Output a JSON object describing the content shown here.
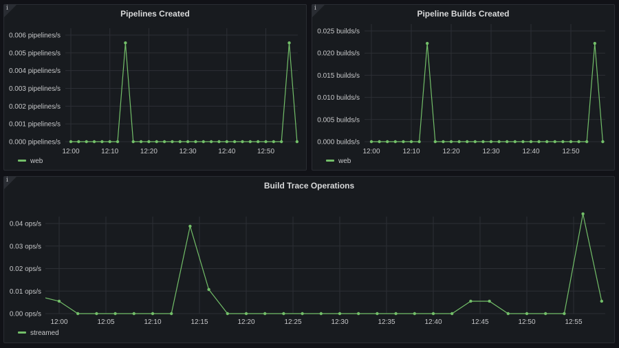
{
  "colors": {
    "series": "#73bf69",
    "grid": "#2c2f35",
    "background": "#111217",
    "panel": "#181b1f"
  },
  "panels": [
    {
      "title": "Pipelines Created",
      "info_icon": "info-icon",
      "info_label": "i"
    },
    {
      "title": "Pipeline Builds Created",
      "info_icon": "info-icon",
      "info_label": "i"
    },
    {
      "title": "Build Trace Operations",
      "info_icon": "info-icon",
      "info_label": "i"
    }
  ],
  "chart_data": [
    {
      "type": "line",
      "title": "Pipelines Created",
      "unit": "pipelines/s",
      "y_ticks": [
        "0.000 pipelines/s",
        "0.001 pipelines/s",
        "0.002 pipelines/s",
        "0.003 pipelines/s",
        "0.004 pipelines/s",
        "0.005 pipelines/s",
        "0.006 pipelines/s"
      ],
      "y_tick_values": [
        0,
        0.001,
        0.002,
        0.003,
        0.004,
        0.005,
        0.006
      ],
      "ylim": [
        0,
        0.006
      ],
      "x_ticks": [
        "12:00",
        "12:10",
        "12:20",
        "12:30",
        "12:40",
        "12:50"
      ],
      "grid": true,
      "legend_position": "bottom-left",
      "x": [
        "12:00",
        "12:02",
        "12:04",
        "12:06",
        "12:08",
        "12:10",
        "12:12",
        "12:14",
        "12:16",
        "12:18",
        "12:20",
        "12:22",
        "12:24",
        "12:26",
        "12:28",
        "12:30",
        "12:32",
        "12:34",
        "12:36",
        "12:38",
        "12:40",
        "12:42",
        "12:44",
        "12:46",
        "12:48",
        "12:50",
        "12:52",
        "12:54",
        "12:56",
        "12:58"
      ],
      "series": [
        {
          "name": "web",
          "values": [
            0,
            0,
            0,
            0,
            0,
            0,
            0,
            0.00556,
            0,
            0,
            0,
            0,
            0,
            0,
            0,
            0,
            0,
            0,
            0,
            0,
            0,
            0,
            0,
            0,
            0,
            0,
            0,
            0,
            0.00556,
            0
          ]
        }
      ]
    },
    {
      "type": "line",
      "title": "Pipeline Builds Created",
      "unit": "builds/s",
      "y_ticks": [
        "0.000 builds/s",
        "0.005 builds/s",
        "0.010 builds/s",
        "0.015 builds/s",
        "0.020 builds/s",
        "0.025 builds/s"
      ],
      "y_tick_values": [
        0,
        0.005,
        0.01,
        0.015,
        0.02,
        0.025
      ],
      "ylim": [
        0,
        0.025
      ],
      "x_ticks": [
        "12:00",
        "12:10",
        "12:20",
        "12:30",
        "12:40",
        "12:50"
      ],
      "grid": true,
      "legend_position": "bottom-left",
      "x": [
        "12:00",
        "12:02",
        "12:04",
        "12:06",
        "12:08",
        "12:10",
        "12:12",
        "12:14",
        "12:16",
        "12:18",
        "12:20",
        "12:22",
        "12:24",
        "12:26",
        "12:28",
        "12:30",
        "12:32",
        "12:34",
        "12:36",
        "12:38",
        "12:40",
        "12:42",
        "12:44",
        "12:46",
        "12:48",
        "12:50",
        "12:52",
        "12:54",
        "12:56",
        "12:58"
      ],
      "series": [
        {
          "name": "web",
          "values": [
            0,
            0,
            0,
            0,
            0,
            0,
            0,
            0.0222,
            0,
            0,
            0,
            0,
            0,
            0,
            0,
            0,
            0,
            0,
            0,
            0,
            0,
            0,
            0,
            0,
            0,
            0,
            0,
            0,
            0.0222,
            0
          ]
        }
      ]
    },
    {
      "type": "line",
      "title": "Build Trace Operations",
      "unit": "ops/s",
      "y_ticks": [
        "0.00 ops/s",
        "0.01 ops/s",
        "0.02 ops/s",
        "0.03 ops/s",
        "0.04 ops/s"
      ],
      "y_tick_values": [
        0,
        0.01,
        0.02,
        0.03,
        0.04
      ],
      "ylim": [
        0,
        0.045
      ],
      "x_ticks": [
        "12:00",
        "12:05",
        "12:10",
        "12:15",
        "12:20",
        "12:25",
        "12:30",
        "12:35",
        "12:40",
        "12:45",
        "12:50",
        "12:55"
      ],
      "grid": true,
      "legend_position": "bottom-left",
      "x": [
        "11:58",
        "12:00",
        "12:02",
        "12:04",
        "12:06",
        "12:08",
        "12:10",
        "12:12",
        "12:14",
        "12:16",
        "12:18",
        "12:20",
        "12:22",
        "12:24",
        "12:26",
        "12:28",
        "12:30",
        "12:32",
        "12:34",
        "12:36",
        "12:38",
        "12:40",
        "12:42",
        "12:44",
        "12:46",
        "12:48",
        "12:50",
        "12:52",
        "12:54",
        "12:56",
        "12:58"
      ],
      "series": [
        {
          "name": "streamed",
          "values": [
            0.0075,
            0.0055,
            0,
            0,
            0,
            0,
            0,
            0,
            0.0388,
            0.0107,
            0,
            0,
            0,
            0,
            0,
            0,
            0,
            0,
            0,
            0,
            0,
            0,
            0,
            0.0055,
            0.0055,
            0,
            0,
            0,
            0,
            0.0443,
            0.0055
          ]
        }
      ]
    }
  ]
}
